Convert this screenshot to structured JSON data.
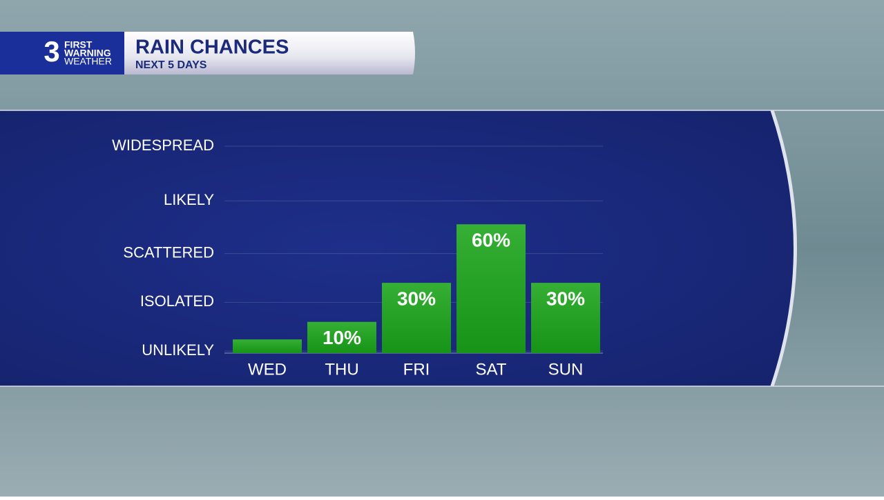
{
  "header": {
    "logo": {
      "number": "3",
      "line1": "FIRST",
      "line2": "WARNING",
      "line3": "WEATHER"
    }
  },
  "chart_data": {
    "type": "bar",
    "title": "RAIN CHANCES",
    "subtitle": "NEXT 5 DAYS",
    "categories": [
      "WED",
      "THU",
      "FRI",
      "SAT",
      "SUN"
    ],
    "values": [
      1,
      10,
      30,
      60,
      30
    ],
    "value_labels": [
      null,
      "10%",
      "30%",
      "60%",
      "30%"
    ],
    "color": "#1aa51a",
    "ylim": [
      -6,
      100
    ],
    "yticks": [
      {
        "value": -5,
        "label": "UNLIKELY"
      },
      {
        "value": 20,
        "label": "ISOLATED"
      },
      {
        "value": 45,
        "label": "SCATTERED"
      },
      {
        "value": 72,
        "label": "LIKELY"
      },
      {
        "value": 100,
        "label": "WIDESPREAD"
      }
    ],
    "grid": true
  }
}
